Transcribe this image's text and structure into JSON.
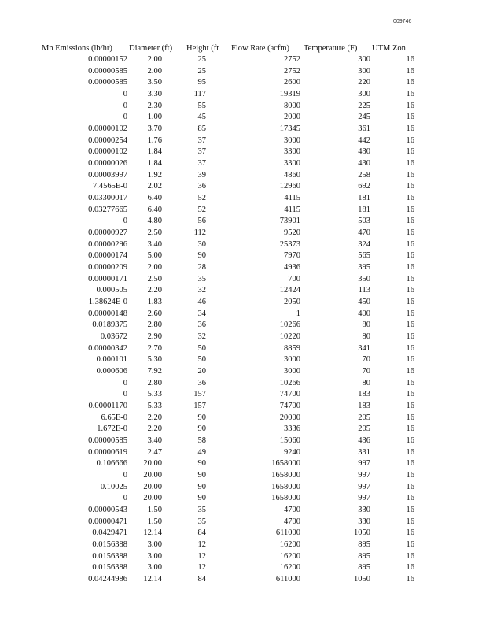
{
  "page_number": "009746",
  "table": {
    "headers": [
      "Mn Emissions (lb/hr)",
      "Diameter (ft)",
      "Height (ft",
      "Flow Rate (acfm)",
      "Temperature (F)",
      "UTM Zon"
    ],
    "rows": [
      [
        "0.00000152",
        "2.00",
        "25",
        "2752",
        "300",
        "16"
      ],
      [
        "0.00000585",
        "2.00",
        "25",
        "2752",
        "300",
        "16"
      ],
      [
        "0.00000585",
        "3.50",
        "95",
        "2600",
        "220",
        "16"
      ],
      [
        "0",
        "3.30",
        "117",
        "19319",
        "300",
        "16"
      ],
      [
        "0",
        "2.30",
        "55",
        "8000",
        "225",
        "16"
      ],
      [
        "0",
        "1.00",
        "45",
        "2000",
        "245",
        "16"
      ],
      [
        "0.00000102",
        "3.70",
        "85",
        "17345",
        "361",
        "16"
      ],
      [
        "0.00000254",
        "1.76",
        "37",
        "3000",
        "442",
        "16"
      ],
      [
        "0.00000102",
        "1.84",
        "37",
        "3300",
        "430",
        "16"
      ],
      [
        "0.00000026",
        "1.84",
        "37",
        "3300",
        "430",
        "16"
      ],
      [
        "0.00003997",
        "1.92",
        "39",
        "4860",
        "258",
        "16"
      ],
      [
        "7.4565E-0",
        "2.02",
        "36",
        "12960",
        "692",
        "16"
      ],
      [
        "0.03300017",
        "6.40",
        "52",
        "4115",
        "181",
        "16"
      ],
      [
        "0.03277665",
        "6.40",
        "52",
        "4115",
        "181",
        "16"
      ],
      [
        "0",
        "4.80",
        "56",
        "73901",
        "503",
        "16"
      ],
      [
        "0.00000927",
        "2.50",
        "112",
        "9520",
        "470",
        "16"
      ],
      [
        "0.00000296",
        "3.40",
        "30",
        "25373",
        "324",
        "16"
      ],
      [
        "0.00000174",
        "5.00",
        "90",
        "7970",
        "565",
        "16"
      ],
      [
        "0.00000209",
        "2.00",
        "28",
        "4936",
        "395",
        "16"
      ],
      [
        "0.00000171",
        "2.50",
        "35",
        "700",
        "350",
        "16"
      ],
      [
        "0.000505",
        "2.20",
        "32",
        "12424",
        "113",
        "16"
      ],
      [
        "1.38624E-0",
        "1.83",
        "46",
        "2050",
        "450",
        "16"
      ],
      [
        "0.00000148",
        "2.60",
        "34",
        "1",
        "400",
        "16"
      ],
      [
        "0.0189375",
        "2.80",
        "36",
        "10266",
        "80",
        "16"
      ],
      [
        "0.03672",
        "2.90",
        "32",
        "10220",
        "80",
        "16"
      ],
      [
        "0.00000342",
        "2.70",
        "50",
        "8859",
        "341",
        "16"
      ],
      [
        "0.000101",
        "5.30",
        "50",
        "3000",
        "70",
        "16"
      ],
      [
        "0.000606",
        "7.92",
        "20",
        "3000",
        "70",
        "16"
      ],
      [
        "0",
        "2.80",
        "36",
        "10266",
        "80",
        "16"
      ],
      [
        "0",
        "5.33",
        "157",
        "74700",
        "183",
        "16"
      ],
      [
        "0.00001170",
        "5.33",
        "157",
        "74700",
        "183",
        "16"
      ],
      [
        "6.65E-0",
        "2.20",
        "90",
        "20000",
        "205",
        "16"
      ],
      [
        "1.672E-0",
        "2.20",
        "90",
        "3336",
        "205",
        "16"
      ],
      [
        "0.00000585",
        "3.40",
        "58",
        "15060",
        "436",
        "16"
      ],
      [
        "0.00000619",
        "2.47",
        "49",
        "9240",
        "331",
        "16"
      ],
      [
        "0.106666",
        "20.00",
        "90",
        "1658000",
        "997",
        "16"
      ],
      [
        "0",
        "20.00",
        "90",
        "1658000",
        "997",
        "16"
      ],
      [
        "0.10025",
        "20.00",
        "90",
        "1658000",
        "997",
        "16"
      ],
      [
        "0",
        "20.00",
        "90",
        "1658000",
        "997",
        "16"
      ],
      [
        "0.00000543",
        "1.50",
        "35",
        "4700",
        "330",
        "16"
      ],
      [
        "0.00000471",
        "1.50",
        "35",
        "4700",
        "330",
        "16"
      ],
      [
        "0.0429471",
        "12.14",
        "84",
        "611000",
        "1050",
        "16"
      ],
      [
        "0.0156388",
        "3.00",
        "12",
        "16200",
        "895",
        "16"
      ],
      [
        "0.0156388",
        "3.00",
        "12",
        "16200",
        "895",
        "16"
      ],
      [
        "0.0156388",
        "3.00",
        "12",
        "16200",
        "895",
        "16"
      ],
      [
        "0.04244986",
        "12.14",
        "84",
        "611000",
        "1050",
        "16"
      ]
    ]
  }
}
